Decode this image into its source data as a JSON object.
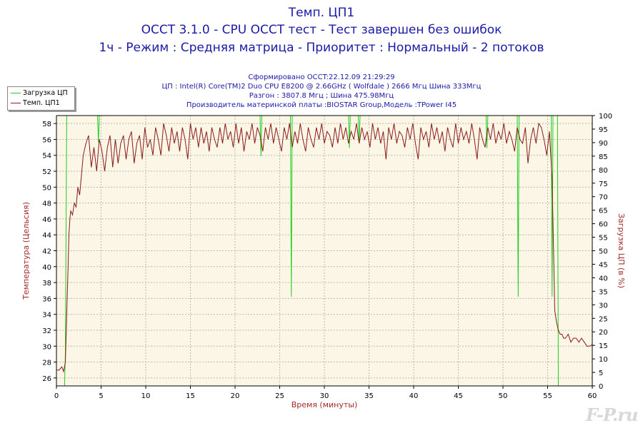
{
  "header": {
    "title": "Темп. ЦП1",
    "subtitle_1": "OCCT 3.1.0 - CPU OCCT тест - Тест завершен без ошибок",
    "subtitle_2": "1ч - Режим : Средняя матрица - Приоритет : Нормальный - 2 потоков"
  },
  "info": {
    "generated": "Сформировано OCCT:22.12.09 21:29:29",
    "cpu": "ЦП : Intel(R) Core(TM)2 Duo CPU E8200 @ 2.66GHz ( Wolfdale ) 2666 Мгц Шина 333Мгц",
    "overclock": "Разгон : 3807.8 Мгц ; Шина 475.98Мгц",
    "board": "Производитель материнской платы :BIOSTAR Group,Модель :TPower I45"
  },
  "watermark": "F-P.ru",
  "colors": {
    "load": "#22cc22",
    "temp": "#8b1a1a",
    "plot_bg": "#fbf6e6",
    "text": "#1a1aa8",
    "axis_label": "#a52a2a"
  },
  "chart_data": {
    "type": "line",
    "xlabel": "Время (минуты)",
    "ylabel_left": "Температура (Цельсия)",
    "ylabel_right": "Загрузка ЦП (в %)",
    "xlim": [
      0,
      60
    ],
    "ylim_left": [
      25,
      59
    ],
    "ylim_right": [
      0,
      100
    ],
    "x_ticks": [
      0,
      5,
      10,
      15,
      20,
      25,
      30,
      35,
      40,
      45,
      50,
      55,
      60
    ],
    "y_left_ticks": [
      26,
      28,
      30,
      32,
      34,
      36,
      38,
      40,
      42,
      44,
      46,
      48,
      50,
      52,
      54,
      56,
      58
    ],
    "y_right_ticks": [
      0,
      5,
      10,
      15,
      20,
      25,
      30,
      35,
      40,
      45,
      50,
      55,
      60,
      65,
      70,
      75,
      80,
      85,
      90,
      95,
      100
    ],
    "grid": true,
    "legend_position": "top-left",
    "series": [
      {
        "name": "Загрузка ЦП",
        "axis": "right",
        "x": [
          0,
          0.9,
          1.0,
          1.15,
          4.6,
          4.7,
          4.8,
          4.9,
          22.8,
          22.9,
          23.0,
          26.2,
          26.3,
          26.4,
          26.5,
          32.7,
          32.8,
          32.9,
          33.8,
          33.9,
          34.0,
          48.1,
          48.2,
          48.3,
          51.6,
          51.7,
          51.8,
          55.4,
          55.5,
          55.6,
          56.1,
          56.2,
          60
        ],
        "values": [
          0,
          0,
          12,
          100,
          100,
          90,
          100,
          100,
          100,
          85,
          100,
          100,
          33,
          100,
          100,
          100,
          88,
          100,
          100,
          90,
          100,
          100,
          88,
          100,
          100,
          33,
          100,
          100,
          33,
          100,
          100,
          0,
          0
        ]
      },
      {
        "name": "Темп. ЦП1",
        "axis": "left",
        "x": [
          0,
          0.3,
          0.6,
          0.8,
          1.0,
          1.1,
          1.2,
          1.3,
          1.4,
          1.5,
          1.6,
          1.8,
          2.0,
          2.2,
          2.4,
          2.6,
          2.8,
          3.0,
          3.3,
          3.6,
          3.9,
          4.2,
          4.5,
          4.8,
          5.1,
          5.4,
          5.7,
          6.0,
          6.3,
          6.6,
          6.9,
          7.2,
          7.5,
          7.8,
          8.1,
          8.4,
          8.7,
          9.0,
          9.3,
          9.6,
          9.9,
          10.2,
          10.5,
          10.8,
          11.1,
          11.4,
          11.7,
          12.0,
          12.3,
          12.6,
          12.9,
          13.2,
          13.5,
          13.8,
          14.1,
          14.4,
          14.7,
          15.0,
          15.3,
          15.6,
          15.9,
          16.2,
          16.5,
          16.8,
          17.1,
          17.4,
          17.7,
          18.0,
          18.3,
          18.6,
          18.9,
          19.2,
          19.5,
          19.8,
          20.1,
          20.4,
          20.7,
          21.0,
          21.3,
          21.6,
          21.9,
          22.2,
          22.5,
          22.8,
          23.1,
          23.4,
          23.7,
          24.0,
          24.3,
          24.6,
          24.9,
          25.2,
          25.5,
          25.8,
          26.1,
          26.4,
          26.7,
          27.0,
          27.3,
          27.6,
          27.9,
          28.2,
          28.5,
          28.8,
          29.1,
          29.4,
          29.7,
          30.0,
          30.3,
          30.6,
          30.9,
          31.2,
          31.5,
          31.8,
          32.1,
          32.4,
          32.7,
          33.0,
          33.3,
          33.6,
          33.9,
          34.2,
          34.5,
          34.8,
          35.1,
          35.4,
          35.7,
          36.0,
          36.3,
          36.6,
          36.9,
          37.2,
          37.5,
          37.8,
          38.1,
          38.4,
          38.7,
          39.0,
          39.3,
          39.6,
          39.9,
          40.2,
          40.5,
          40.8,
          41.1,
          41.4,
          41.7,
          42.0,
          42.3,
          42.6,
          42.9,
          43.2,
          43.5,
          43.8,
          44.1,
          44.4,
          44.7,
          45.0,
          45.3,
          45.6,
          45.9,
          46.2,
          46.5,
          46.8,
          47.1,
          47.4,
          47.7,
          48.0,
          48.3,
          48.6,
          48.9,
          49.2,
          49.5,
          49.8,
          50.1,
          50.4,
          50.7,
          51.0,
          51.3,
          51.6,
          51.9,
          52.2,
          52.5,
          52.8,
          53.1,
          53.4,
          53.7,
          54.0,
          54.3,
          54.6,
          54.9,
          55.2,
          55.5,
          55.8,
          56.0,
          56.2,
          56.4,
          56.6,
          56.8,
          57.0,
          57.3,
          57.6,
          57.9,
          58.2,
          58.5,
          58.8,
          59.1,
          59.4,
          59.7,
          60
        ],
        "values": [
          27,
          27,
          27.4,
          26.8,
          28,
          32,
          36,
          40,
          44,
          46,
          47,
          46.5,
          48,
          47.5,
          50,
          49,
          51.5,
          54,
          55.5,
          56.5,
          52.5,
          55,
          52,
          56,
          54.5,
          52,
          55,
          56.5,
          52.5,
          56,
          53,
          55.5,
          56.5,
          53.5,
          56,
          57,
          53,
          55.5,
          56.5,
          53.5,
          57.5,
          55,
          56,
          54,
          57.5,
          56,
          54,
          58,
          56.5,
          54.5,
          57.5,
          55.5,
          57,
          54.5,
          57.5,
          56,
          53.5,
          58,
          56,
          57.5,
          55,
          57.5,
          55.5,
          57,
          54.5,
          57.5,
          56,
          55,
          57.5,
          55.5,
          58,
          56,
          57,
          55,
          58,
          55.5,
          57.5,
          54.5,
          57,
          56,
          58,
          55.5,
          57.5,
          56.5,
          54.5,
          57.5,
          56,
          58,
          55.5,
          57.5,
          56,
          54.5,
          57.5,
          56,
          58,
          55,
          57,
          55.5,
          58,
          56,
          54.5,
          57.5,
          56,
          55,
          57.5,
          56,
          58,
          55.5,
          57,
          56.5,
          55,
          57.5,
          55.5,
          58,
          56,
          57.5,
          55.5,
          57,
          56,
          58,
          55.5,
          57.5,
          56,
          57,
          55,
          58,
          56,
          57.5,
          55.5,
          57,
          53.5,
          57.5,
          56,
          58,
          55.5,
          57,
          56.5,
          55,
          57.5,
          56,
          58,
          55.5,
          53.5,
          57.5,
          56,
          57,
          55,
          58,
          56,
          57.5,
          55.5,
          57,
          54.5,
          57.5,
          56,
          55,
          58,
          55.5,
          57.5,
          56,
          57,
          55.5,
          58,
          56,
          53.5,
          57.5,
          56,
          55,
          57.5,
          56,
          58,
          55.5,
          57,
          56,
          58,
          55.5,
          57,
          56,
          54.5,
          57.5,
          56,
          55.5,
          57.5,
          53,
          56,
          57.5,
          55.5,
          58,
          57.5,
          56,
          54,
          57,
          51,
          34.5,
          33,
          32,
          31.5,
          31.5,
          31,
          31,
          31.5,
          30.5,
          31,
          31,
          30.5,
          31,
          30.5,
          30,
          30,
          30.2
        ]
      }
    ]
  }
}
